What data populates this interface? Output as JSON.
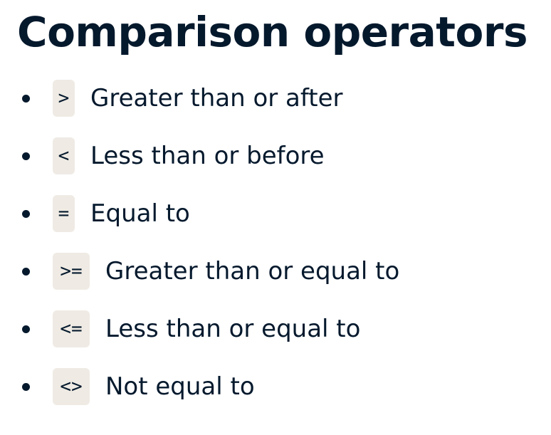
{
  "title": "Comparison operators",
  "operators": [
    {
      "symbol": ">",
      "description": "Greater than or after"
    },
    {
      "symbol": "<",
      "description": "Less than or before"
    },
    {
      "symbol": "=",
      "description": "Equal to"
    },
    {
      "symbol": ">=",
      "description": "Greater than or equal to"
    },
    {
      "symbol": "<=",
      "description": "Less than or equal to"
    },
    {
      "symbol": "<>",
      "description": "Not equal to"
    }
  ],
  "colors": {
    "text": "#05192d",
    "code_background": "#efebe4"
  }
}
